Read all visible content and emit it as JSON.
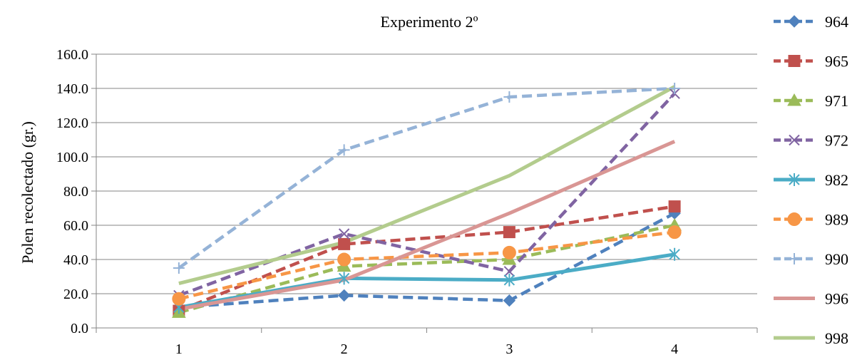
{
  "chart_data": {
    "type": "line",
    "title": "Experimento 2º",
    "xlabel": "",
    "ylabel": "Polen recolectado (gr.)",
    "categories": [
      "1",
      "2",
      "3",
      "4"
    ],
    "ylim": [
      0,
      160
    ],
    "y_ticks": [
      "0.0",
      "20.0",
      "40.0",
      "60.0",
      "80.0",
      "100.0",
      "120.0",
      "140.0",
      "160.0"
    ],
    "grid": true,
    "legend_position": "right",
    "series": [
      {
        "name": "964",
        "values": [
          12,
          19,
          16,
          67
        ],
        "color": "#4F81BD",
        "dash": true,
        "marker": "diamond"
      },
      {
        "name": "965",
        "values": [
          10,
          49,
          56,
          71
        ],
        "color": "#C0504D",
        "dash": true,
        "marker": "square"
      },
      {
        "name": "971",
        "values": [
          9,
          36,
          40,
          60
        ],
        "color": "#9BBB59",
        "dash": true,
        "marker": "triangle"
      },
      {
        "name": "972",
        "values": [
          19,
          55,
          33,
          137
        ],
        "color": "#8064A2",
        "dash": true,
        "marker": "x"
      },
      {
        "name": "982",
        "values": [
          12,
          29,
          28,
          43
        ],
        "color": "#4BACC6",
        "dash": false,
        "marker": "asterisk"
      },
      {
        "name": "989",
        "values": [
          17,
          40,
          44,
          56
        ],
        "color": "#F79646",
        "dash": true,
        "marker": "circle"
      },
      {
        "name": "990",
        "values": [
          35,
          104,
          135,
          140
        ],
        "color": "#95B3D7",
        "dash": true,
        "marker": "plus"
      },
      {
        "name": "996",
        "values": [
          11,
          28,
          67,
          109
        ],
        "color": "#D99694",
        "dash": false,
        "marker": "none"
      },
      {
        "name": "998",
        "values": [
          26,
          50,
          89,
          141
        ],
        "color": "#B3CC8D",
        "dash": false,
        "marker": "none"
      }
    ]
  }
}
